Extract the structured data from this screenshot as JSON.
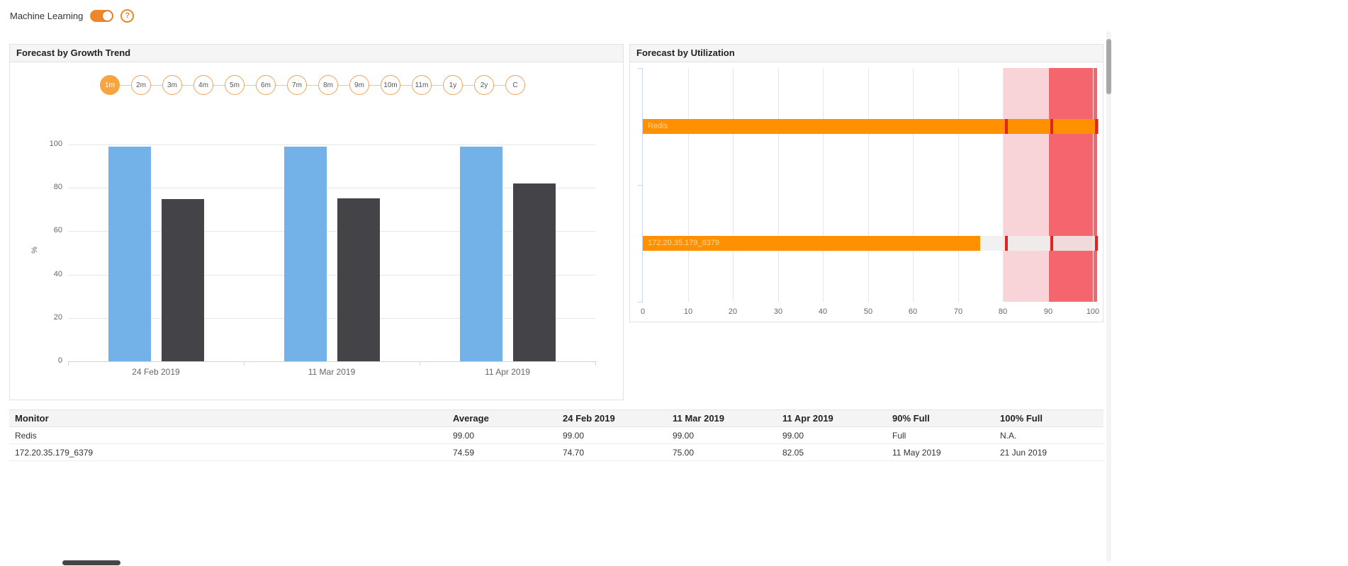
{
  "colors": {
    "accent_orange": "#f0862b",
    "range_selected": "#f9a43f",
    "range_border": "#f0a35b",
    "axis_line": "#ccd6eb",
    "grid_line": "#e6e6e6",
    "axis_text": "#666666",
    "bar_label": "#ffd9a2",
    "remainder": "rgba(238,238,238,0.85)",
    "blue_bar": "#73b2e9",
    "dark_bar": "#434348",
    "orange_bar": "#ff9000",
    "marker_red": "#e0251f"
  },
  "header": {
    "ml_label": "Machine Learning",
    "help_glyph": "?"
  },
  "growth_panel": {
    "title": "Forecast by Growth Trend",
    "ranges": [
      "1m",
      "2m",
      "3m",
      "4m",
      "5m",
      "6m",
      "7m",
      "8m",
      "9m",
      "10m",
      "11m",
      "1y",
      "2y",
      "C"
    ],
    "selected_range": "1m"
  },
  "utilization_panel": {
    "title": "Forecast by Utilization"
  },
  "chart_data": [
    {
      "type": "bar",
      "title": "Forecast by Growth Trend",
      "categories": [
        "24 Feb 2019",
        "11 Mar 2019",
        "11 Apr 2019"
      ],
      "series": [
        {
          "name": "Redis",
          "color": "#73b2e9",
          "values": [
            99,
            99,
            99
          ]
        },
        {
          "name": "172.20.35.179_6379",
          "color": "#434348",
          "values": [
            74.7,
            75,
            82.05
          ]
        }
      ],
      "xlabel": "",
      "ylabel": "%",
      "ylim": [
        0,
        100
      ],
      "yticks": [
        0,
        20,
        40,
        60,
        80,
        100
      ],
      "grid": true,
      "legend": "none"
    },
    {
      "type": "bar-horizontal",
      "title": "Forecast by Utilization",
      "categories": [
        "Redis",
        "172.20.35.179_6379"
      ],
      "values": [
        100,
        75
      ],
      "xlim": [
        0,
        101
      ],
      "xticks": [
        0,
        10,
        20,
        30,
        40,
        50,
        60,
        70,
        80,
        90,
        100
      ],
      "bar_color": "#ff9000",
      "plot_bands": [
        {
          "from": 80,
          "to": 90,
          "color": "#f8d3d8"
        },
        {
          "from": 90,
          "to": 101,
          "color": "#f4656e"
        }
      ],
      "threshold_markers": [
        80,
        90,
        100
      ],
      "marker_color": "#e0251f",
      "grid": true,
      "legend": "none"
    }
  ],
  "table": {
    "columns": [
      "Monitor",
      "Average",
      "24 Feb 2019",
      "11 Mar 2019",
      "11 Apr 2019",
      "90% Full",
      "100% Full"
    ],
    "rows": [
      [
        "Redis",
        "99.00",
        "99.00",
        "99.00",
        "99.00",
        "Full",
        "N.A."
      ],
      [
        "172.20.35.179_6379",
        "74.59",
        "74.70",
        "75.00",
        "82.05",
        "11 May 2019",
        "21 Jun 2019"
      ]
    ]
  }
}
